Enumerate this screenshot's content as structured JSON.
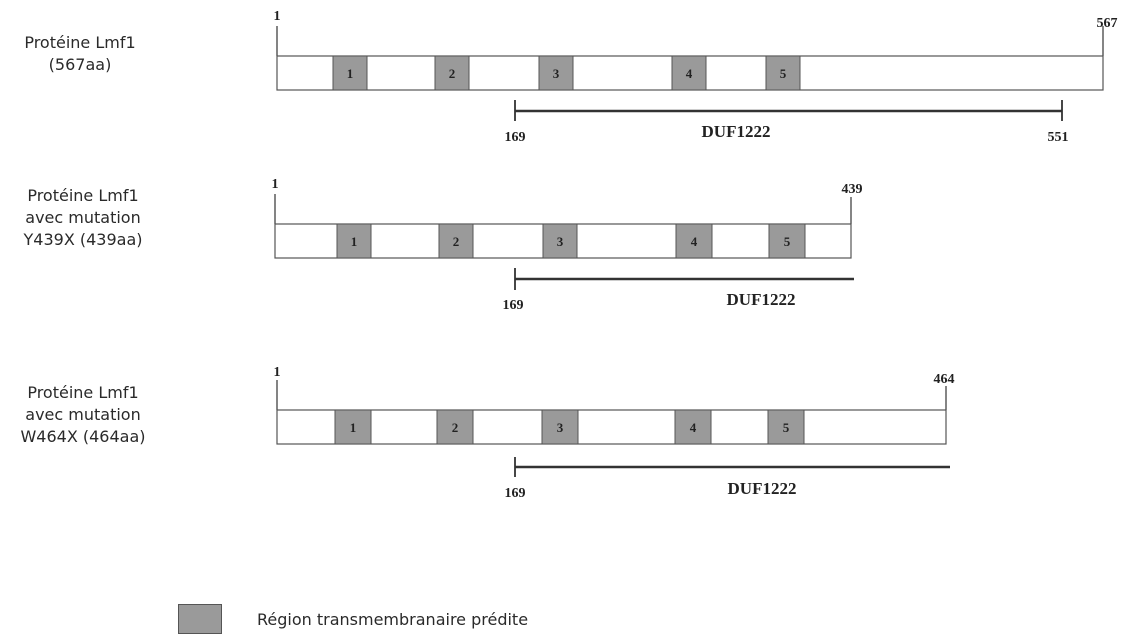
{
  "proteins": [
    {
      "label_lines": [
        "Protéine Lmf1",
        "(567aa)"
      ],
      "start_label": "1",
      "end_label": "567",
      "tm_labels": [
        "1",
        "2",
        "3",
        "4",
        "5"
      ],
      "domain": {
        "start_label": "169",
        "end_label": "551",
        "name": "DUF1222"
      }
    },
    {
      "label_lines": [
        "Protéine Lmf1",
        "avec mutation",
        "Y439X (439aa)"
      ],
      "start_label": "1",
      "end_label": "439",
      "tm_labels": [
        "1",
        "2",
        "3",
        "4",
        "5"
      ],
      "domain": {
        "start_label": "169",
        "end_label": "",
        "name": "DUF1222"
      }
    },
    {
      "label_lines": [
        "Protéine Lmf1",
        "avec mutation",
        "W464X (464aa)"
      ],
      "start_label": "1",
      "end_label": "464",
      "tm_labels": [
        "1",
        "2",
        "3",
        "4",
        "5"
      ],
      "domain": {
        "start_label": "169",
        "end_label": "",
        "name": "DUF1222"
      }
    }
  ],
  "legend": {
    "label": "Région transmembranaire prédite",
    "swatch_color": "#9a9a9a"
  },
  "colors": {
    "tm_fill": "#9a9a9a",
    "outline": "#555555",
    "line": "#333333"
  }
}
